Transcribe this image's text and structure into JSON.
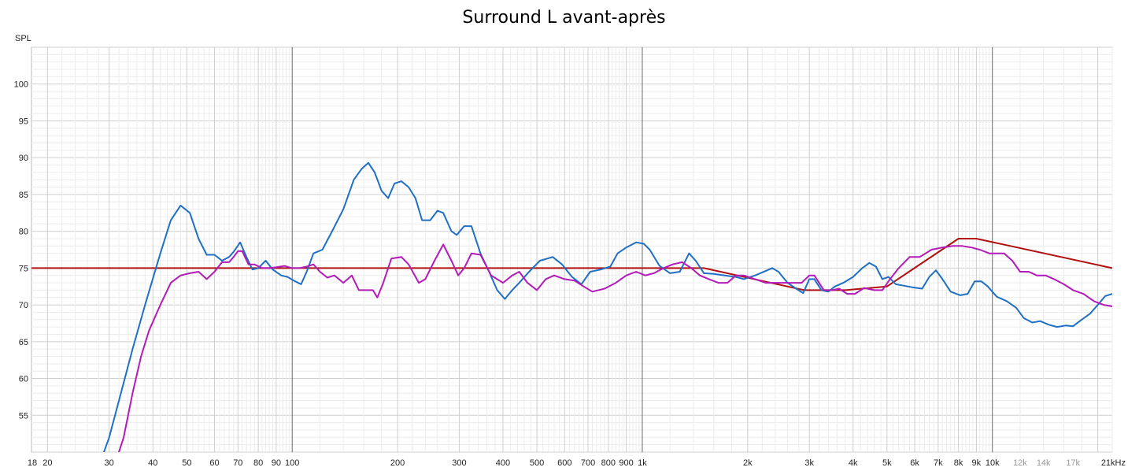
{
  "chart_data": {
    "type": "line",
    "title": "Surround L avant-après",
    "ylabel": "SPL",
    "x_scale": "log",
    "xlim": [
      18,
      22000
    ],
    "ylim": [
      50,
      105
    ],
    "grid": true,
    "legend": "none",
    "y_ticks": [
      55,
      60,
      65,
      70,
      75,
      80,
      85,
      90,
      95,
      100
    ],
    "x_ticks": [
      {
        "v": 18,
        "label": "18"
      },
      {
        "v": 20,
        "label": "20"
      },
      {
        "v": 30,
        "label": "30"
      },
      {
        "v": 40,
        "label": "40"
      },
      {
        "v": 50,
        "label": "50"
      },
      {
        "v": 60,
        "label": "60"
      },
      {
        "v": 70,
        "label": "70"
      },
      {
        "v": 80,
        "label": "80"
      },
      {
        "v": 90,
        "label": "90"
      },
      {
        "v": 100,
        "label": "100"
      },
      {
        "v": 200,
        "label": "200"
      },
      {
        "v": 300,
        "label": "300"
      },
      {
        "v": 400,
        "label": "400"
      },
      {
        "v": 500,
        "label": "500"
      },
      {
        "v": 600,
        "label": "600"
      },
      {
        "v": 700,
        "label": "700"
      },
      {
        "v": 800,
        "label": "800"
      },
      {
        "v": 900,
        "label": "900"
      },
      {
        "v": 1000,
        "label": "1k"
      },
      {
        "v": 2000,
        "label": "2k"
      },
      {
        "v": 3000,
        "label": "3k"
      },
      {
        "v": 4000,
        "label": "4k"
      },
      {
        "v": 5000,
        "label": "5k"
      },
      {
        "v": 6000,
        "label": "6k"
      },
      {
        "v": 7000,
        "label": "7k"
      },
      {
        "v": 8000,
        "label": "8k"
      },
      {
        "v": 9000,
        "label": "9k"
      },
      {
        "v": 10000,
        "label": "10k"
      },
      {
        "v": 12000,
        "label": "12k",
        "muted": true
      },
      {
        "v": 14000,
        "label": "14k",
        "muted": true
      },
      {
        "v": 17000,
        "label": "17k",
        "muted": true
      },
      {
        "v": 22000,
        "label": "21kHz"
      }
    ],
    "series": [
      {
        "color": "#b01010",
        "points": [
          [
            18,
            75
          ],
          [
            1500,
            75
          ],
          [
            2900,
            72
          ],
          [
            3800,
            72
          ],
          [
            5000,
            72.5
          ],
          [
            8000,
            79
          ],
          [
            9000,
            79
          ],
          [
            22000,
            75
          ]
        ]
      },
      {
        "color": "#1f6fc4",
        "points": [
          [
            28,
            48
          ],
          [
            30,
            52
          ],
          [
            32,
            57
          ],
          [
            35,
            64
          ],
          [
            38,
            70
          ],
          [
            42,
            77
          ],
          [
            45,
            81.5
          ],
          [
            48,
            83.5
          ],
          [
            51,
            82.5
          ],
          [
            54,
            79
          ],
          [
            57,
            76.8
          ],
          [
            60,
            76.8
          ],
          [
            63,
            76
          ],
          [
            66,
            76.5
          ],
          [
            68,
            77.2
          ],
          [
            71,
            78.5
          ],
          [
            74,
            76.5
          ],
          [
            77,
            74.8
          ],
          [
            80,
            75
          ],
          [
            84,
            76
          ],
          [
            88,
            74.8
          ],
          [
            93,
            74
          ],
          [
            97,
            73.8
          ],
          [
            102,
            73.2
          ],
          [
            106,
            72.8
          ],
          [
            110,
            74.5
          ],
          [
            115,
            77
          ],
          [
            122,
            77.5
          ],
          [
            130,
            80
          ],
          [
            140,
            83
          ],
          [
            150,
            87
          ],
          [
            158,
            88.5
          ],
          [
            165,
            89.3
          ],
          [
            172,
            88
          ],
          [
            180,
            85.5
          ],
          [
            188,
            84.5
          ],
          [
            196,
            86.5
          ],
          [
            205,
            86.8
          ],
          [
            215,
            86
          ],
          [
            225,
            84.5
          ],
          [
            235,
            81.5
          ],
          [
            248,
            81.5
          ],
          [
            260,
            82.8
          ],
          [
            270,
            82.5
          ],
          [
            285,
            80
          ],
          [
            295,
            79.5
          ],
          [
            310,
            80.7
          ],
          [
            325,
            80.7
          ],
          [
            345,
            77
          ],
          [
            365,
            74.5
          ],
          [
            385,
            72
          ],
          [
            405,
            70.8
          ],
          [
            425,
            72
          ],
          [
            445,
            73
          ],
          [
            475,
            74.5
          ],
          [
            510,
            76
          ],
          [
            555,
            76.5
          ],
          [
            590,
            75.5
          ],
          [
            630,
            73.8
          ],
          [
            670,
            72.8
          ],
          [
            710,
            74.5
          ],
          [
            760,
            74.8
          ],
          [
            810,
            75.2
          ],
          [
            850,
            77
          ],
          [
            900,
            77.8
          ],
          [
            960,
            78.5
          ],
          [
            1010,
            78.3
          ],
          [
            1050,
            77.5
          ],
          [
            1120,
            75.3
          ],
          [
            1200,
            74.3
          ],
          [
            1280,
            74.5
          ],
          [
            1360,
            77
          ],
          [
            1420,
            76
          ],
          [
            1500,
            74.3
          ],
          [
            1600,
            74.2
          ],
          [
            1720,
            74
          ],
          [
            1850,
            73.8
          ],
          [
            1950,
            73.5
          ],
          [
            2100,
            74
          ],
          [
            2250,
            74.6
          ],
          [
            2350,
            75
          ],
          [
            2450,
            74.5
          ],
          [
            2600,
            73
          ],
          [
            2750,
            72.2
          ],
          [
            2880,
            71.6
          ],
          [
            3000,
            73.5
          ],
          [
            3100,
            73.5
          ],
          [
            3250,
            72
          ],
          [
            3400,
            71.8
          ],
          [
            3550,
            72.5
          ],
          [
            3750,
            73
          ],
          [
            4000,
            73.8
          ],
          [
            4250,
            75
          ],
          [
            4450,
            75.7
          ],
          [
            4650,
            75.2
          ],
          [
            4850,
            73.5
          ],
          [
            5050,
            73.8
          ],
          [
            5300,
            72.8
          ],
          [
            5600,
            72.6
          ],
          [
            5900,
            72.4
          ],
          [
            6300,
            72.2
          ],
          [
            6600,
            73.8
          ],
          [
            6900,
            74.7
          ],
          [
            7200,
            73.5
          ],
          [
            7600,
            71.8
          ],
          [
            8100,
            71.3
          ],
          [
            8500,
            71.5
          ],
          [
            8900,
            73.2
          ],
          [
            9300,
            73.2
          ],
          [
            9700,
            72.5
          ],
          [
            10300,
            71.1
          ],
          [
            11000,
            70.5
          ],
          [
            11700,
            69.6
          ],
          [
            12300,
            68.2
          ],
          [
            13000,
            67.6
          ],
          [
            13700,
            67.8
          ],
          [
            14500,
            67.3
          ],
          [
            15300,
            67
          ],
          [
            16200,
            67.2
          ],
          [
            17000,
            67.1
          ],
          [
            18000,
            68
          ],
          [
            19000,
            68.8
          ],
          [
            20000,
            70
          ],
          [
            21000,
            71.2
          ],
          [
            22000,
            71.5
          ]
        ]
      },
      {
        "color": "#b21bb8",
        "points": [
          [
            31,
            48
          ],
          [
            33,
            52
          ],
          [
            35,
            58
          ],
          [
            37,
            63
          ],
          [
            39,
            66.5
          ],
          [
            42,
            70
          ],
          [
            45,
            73
          ],
          [
            48,
            74
          ],
          [
            51,
            74.3
          ],
          [
            54,
            74.5
          ],
          [
            57,
            73.5
          ],
          [
            60,
            74.5
          ],
          [
            63,
            75.8
          ],
          [
            66,
            75.8
          ],
          [
            68,
            76.5
          ],
          [
            70,
            77.3
          ],
          [
            72,
            77.3
          ],
          [
            75,
            75.5
          ],
          [
            78,
            75.5
          ],
          [
            82,
            75
          ],
          [
            86,
            75
          ],
          [
            90,
            75.1
          ],
          [
            95,
            75.3
          ],
          [
            100,
            75
          ],
          [
            105,
            75
          ],
          [
            110,
            75.2
          ],
          [
            115,
            75.5
          ],
          [
            120,
            74.5
          ],
          [
            126,
            73.7
          ],
          [
            132,
            74
          ],
          [
            140,
            73
          ],
          [
            148,
            74
          ],
          [
            155,
            72
          ],
          [
            163,
            72
          ],
          [
            170,
            72
          ],
          [
            175,
            71
          ],
          [
            182,
            73
          ],
          [
            192,
            76.3
          ],
          [
            205,
            76.5
          ],
          [
            215,
            75.5
          ],
          [
            230,
            73
          ],
          [
            240,
            73.5
          ],
          [
            255,
            76
          ],
          [
            270,
            78.2
          ],
          [
            285,
            76
          ],
          [
            298,
            74
          ],
          [
            310,
            75
          ],
          [
            325,
            77
          ],
          [
            345,
            76.8
          ],
          [
            370,
            74
          ],
          [
            400,
            73
          ],
          [
            425,
            74
          ],
          [
            445,
            74.5
          ],
          [
            470,
            73
          ],
          [
            500,
            72
          ],
          [
            530,
            73.5
          ],
          [
            560,
            74
          ],
          [
            600,
            73.5
          ],
          [
            640,
            73.3
          ],
          [
            680,
            72.5
          ],
          [
            720,
            71.8
          ],
          [
            780,
            72.2
          ],
          [
            840,
            73
          ],
          [
            900,
            74
          ],
          [
            960,
            74.5
          ],
          [
            1020,
            74
          ],
          [
            1080,
            74.3
          ],
          [
            1150,
            75
          ],
          [
            1220,
            75.5
          ],
          [
            1300,
            75.8
          ],
          [
            1380,
            75
          ],
          [
            1460,
            74
          ],
          [
            1550,
            73.5
          ],
          [
            1650,
            73
          ],
          [
            1750,
            73
          ],
          [
            1850,
            74
          ],
          [
            1950,
            74
          ],
          [
            2100,
            73.5
          ],
          [
            2250,
            73
          ],
          [
            2400,
            73
          ],
          [
            2550,
            73
          ],
          [
            2700,
            73
          ],
          [
            2850,
            73
          ],
          [
            3000,
            74
          ],
          [
            3100,
            74
          ],
          [
            3300,
            72
          ],
          [
            3500,
            72
          ],
          [
            3650,
            72.2
          ],
          [
            3850,
            71.5
          ],
          [
            4050,
            71.5
          ],
          [
            4300,
            72.3
          ],
          [
            4600,
            72
          ],
          [
            4850,
            72
          ],
          [
            5100,
            73.5
          ],
          [
            5400,
            75
          ],
          [
            5800,
            76.5
          ],
          [
            6200,
            76.5
          ],
          [
            6700,
            77.5
          ],
          [
            7200,
            77.8
          ],
          [
            7700,
            78
          ],
          [
            8200,
            78
          ],
          [
            8700,
            77.8
          ],
          [
            9200,
            77.5
          ],
          [
            9800,
            77
          ],
          [
            10300,
            77
          ],
          [
            10800,
            77
          ],
          [
            11400,
            76
          ],
          [
            12000,
            74.5
          ],
          [
            12700,
            74.5
          ],
          [
            13400,
            74
          ],
          [
            14200,
            74
          ],
          [
            15000,
            73.5
          ],
          [
            16000,
            72.8
          ],
          [
            17000,
            72
          ],
          [
            18200,
            71.5
          ],
          [
            19500,
            70.5
          ],
          [
            20800,
            70
          ],
          [
            22000,
            69.8
          ]
        ]
      }
    ]
  }
}
